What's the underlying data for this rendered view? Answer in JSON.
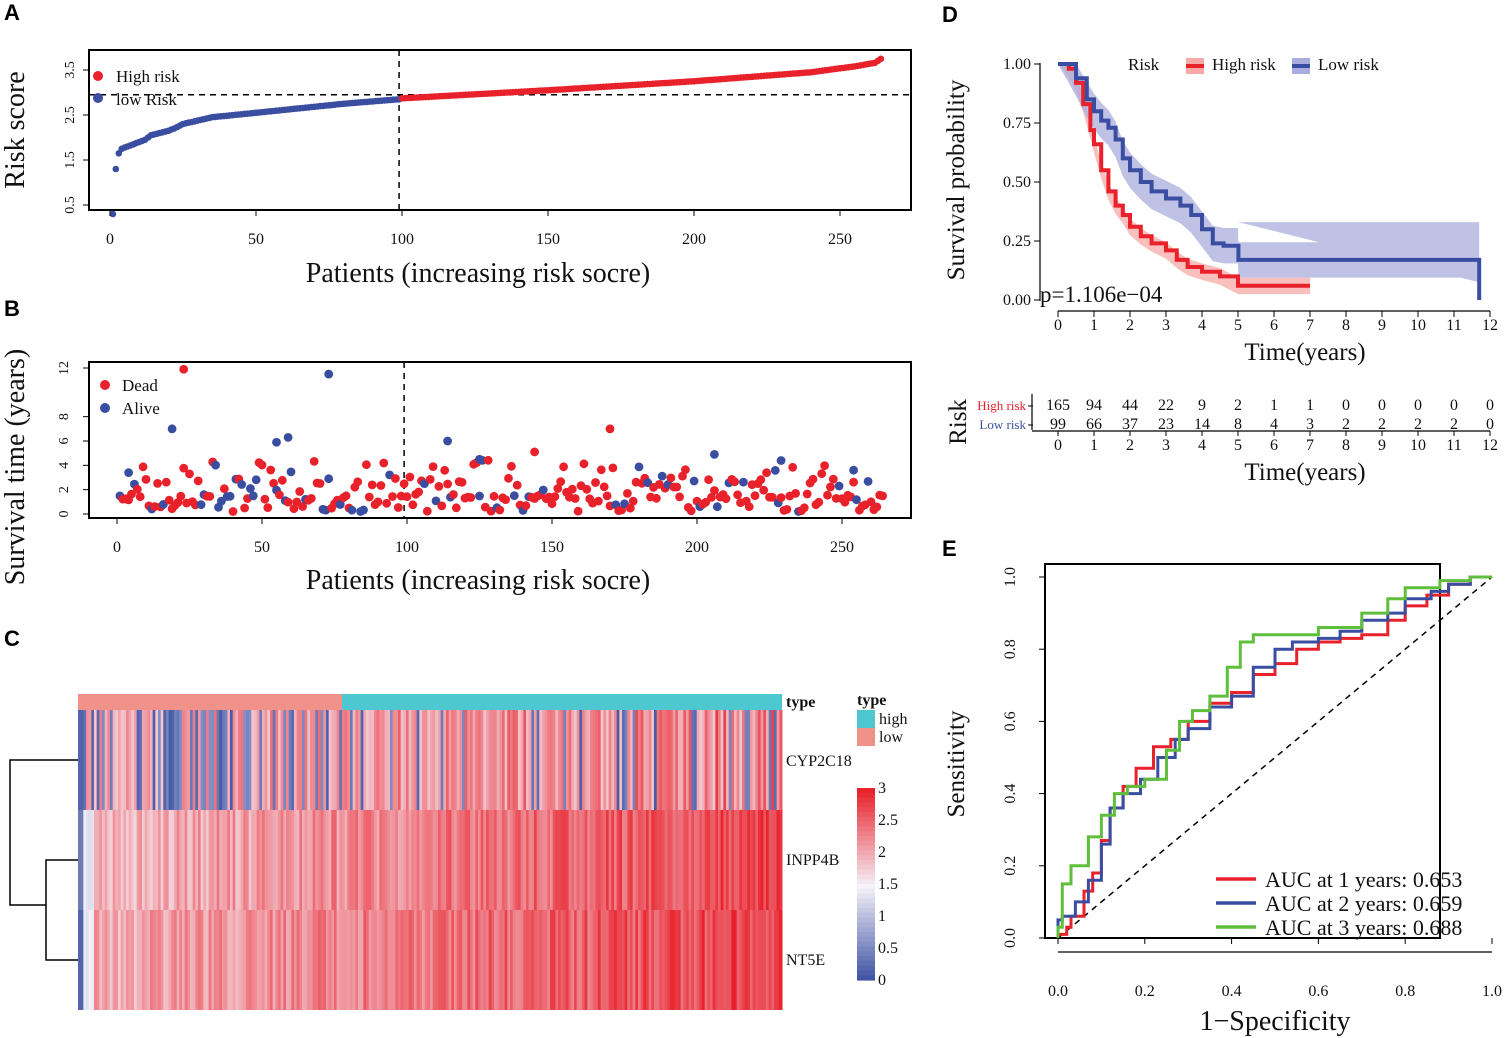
{
  "panel_labels": [
    "A",
    "B",
    "C",
    "D",
    "E"
  ],
  "chart_data": [
    {
      "panel": "A",
      "type": "scatter",
      "ylabel": "Risk score",
      "xlabel": "Patients (increasing risk socre)",
      "xlim": [
        0,
        265
      ],
      "ylim": [
        0.2,
        3.75
      ],
      "xticks": [
        "0",
        "50",
        "100",
        "150",
        "200",
        "250"
      ],
      "yticks": [
        "0.5",
        "1.5",
        "2.5",
        "3.5"
      ],
      "cutoff_patient": 99,
      "cutoff_score": 2.95,
      "n_patients": 264,
      "legend": [
        {
          "label": "High risk",
          "color": "#e8212b"
        },
        {
          "label": "low Risk",
          "color": "#3a4ea1"
        }
      ],
      "curve_anchors": [
        [
          1,
          0.3
        ],
        [
          2,
          1.3
        ],
        [
          3,
          1.65
        ],
        [
          4,
          1.75
        ],
        [
          8,
          1.85
        ],
        [
          12,
          1.95
        ],
        [
          14,
          2.05
        ],
        [
          20,
          2.15
        ],
        [
          22,
          2.2
        ],
        [
          25,
          2.3
        ],
        [
          35,
          2.45
        ],
        [
          50,
          2.55
        ],
        [
          65,
          2.65
        ],
        [
          80,
          2.75
        ],
        [
          99,
          2.85
        ],
        [
          100,
          2.87
        ],
        [
          150,
          3.05
        ],
        [
          200,
          3.25
        ],
        [
          240,
          3.45
        ],
        [
          255,
          3.58
        ],
        [
          262,
          3.66
        ],
        [
          264,
          3.75
        ]
      ]
    },
    {
      "panel": "B",
      "type": "scatter",
      "ylabel": "Survival time (years)",
      "xlabel": "Patients (increasing risk socre)",
      "xlim": [
        0,
        265
      ],
      "ylim": [
        0,
        12
      ],
      "xticks": [
        "0",
        "50",
        "100",
        "150",
        "200",
        "250"
      ],
      "yticks": [
        "0",
        "2",
        "4",
        "6",
        "8",
        "12"
      ],
      "cutoff_patient": 99,
      "legend": [
        {
          "label": "Dead",
          "color": "#e8212b"
        },
        {
          "label": "Alive",
          "color": "#3a4ea1"
        }
      ],
      "highlight_points": [
        {
          "x": 23,
          "y": 11.9,
          "status": "Dead"
        },
        {
          "x": 73,
          "y": 11.5,
          "status": "Alive"
        },
        {
          "x": 19,
          "y": 7.0,
          "status": "Alive"
        },
        {
          "x": 170,
          "y": 7.0,
          "status": "Dead"
        },
        {
          "x": 59,
          "y": 6.3,
          "status": "Alive"
        },
        {
          "x": 114,
          "y": 6.0,
          "status": "Alive"
        },
        {
          "x": 55,
          "y": 5.9,
          "status": "Alive"
        },
        {
          "x": 144,
          "y": 5.1,
          "status": "Dead"
        },
        {
          "x": 206,
          "y": 4.9,
          "status": "Alive"
        },
        {
          "x": 229,
          "y": 4.4,
          "status": "Alive"
        },
        {
          "x": 254,
          "y": 3.6,
          "status": "Alive"
        },
        {
          "x": 4,
          "y": 3.4,
          "status": "Alive"
        },
        {
          "x": 125,
          "y": 4.5,
          "status": "Alive"
        }
      ],
      "seed": 7
    },
    {
      "panel": "C",
      "type": "heatmap",
      "rows": [
        "CYP2C18",
        "INPP4B",
        "NT5E"
      ],
      "annotation_title": "type",
      "annotation_groups": [
        {
          "label": "high",
          "color": "#4ec8d0"
        },
        {
          "label": "low",
          "color": "#f1928a"
        }
      ],
      "low_count": 99,
      "high_count": 165,
      "scale_ticks": [
        "3",
        "2.5",
        "2",
        "1.5",
        "1",
        "0.5",
        "0"
      ],
      "scale_range": [
        0,
        3
      ],
      "colors": {
        "low": "#3a4ea1",
        "mid": "#f5f2f9",
        "high": "#e8212b"
      }
    },
    {
      "panel": "D",
      "type": "line",
      "ylabel": "Survival probability",
      "xlabel": "Time(years)",
      "xlim": [
        0,
        12
      ],
      "ylim": [
        0,
        1
      ],
      "xticks": [
        "0",
        "1",
        "2",
        "3",
        "4",
        "5",
        "6",
        "7",
        "8",
        "9",
        "10",
        "11",
        "12"
      ],
      "yticks": [
        "0.00",
        "0.25",
        "0.50",
        "0.75",
        "1.00"
      ],
      "legend_title": "Risk",
      "pvalue": "p=1.106e−04",
      "series": [
        {
          "name": "High risk",
          "color": "#e8212b",
          "band": "#f6a9a7",
          "points": [
            [
              0,
              1.0
            ],
            [
              0.3,
              0.98
            ],
            [
              0.5,
              0.92
            ],
            [
              0.7,
              0.83
            ],
            [
              0.9,
              0.72
            ],
            [
              1.0,
              0.66
            ],
            [
              1.2,
              0.55
            ],
            [
              1.4,
              0.46
            ],
            [
              1.6,
              0.4
            ],
            [
              1.8,
              0.36
            ],
            [
              2.0,
              0.31
            ],
            [
              2.3,
              0.27
            ],
            [
              2.6,
              0.24
            ],
            [
              3.0,
              0.21
            ],
            [
              3.3,
              0.17
            ],
            [
              3.6,
              0.14
            ],
            [
              4.0,
              0.12
            ],
            [
              4.5,
              0.1
            ],
            [
              5.0,
              0.06
            ],
            [
              7.0,
              0.06
            ]
          ],
          "band_halfwidth": 0.035
        },
        {
          "name": "Low risk",
          "color": "#3a4ea1",
          "band": "#a9acdc",
          "points": [
            [
              0,
              1.0
            ],
            [
              0.5,
              0.94
            ],
            [
              0.8,
              0.85
            ],
            [
              1.0,
              0.8
            ],
            [
              1.2,
              0.76
            ],
            [
              1.4,
              0.73
            ],
            [
              1.6,
              0.68
            ],
            [
              1.8,
              0.6
            ],
            [
              2.0,
              0.55
            ],
            [
              2.3,
              0.5
            ],
            [
              2.6,
              0.46
            ],
            [
              3.0,
              0.43
            ],
            [
              3.4,
              0.4
            ],
            [
              3.7,
              0.36
            ],
            [
              4.0,
              0.3
            ],
            [
              4.3,
              0.24
            ],
            [
              4.6,
              0.23
            ],
            [
              5.0,
              0.23
            ],
            [
              5.01,
              0.17
            ],
            [
              11.7,
              0.17
            ],
            [
              11.7,
              0.0
            ]
          ],
          "band_halfwidth": 0.075
        }
      ],
      "risk_table": {
        "title": "Risk",
        "xlabel": "Time(years)",
        "times": [
          "0",
          "1",
          "2",
          "3",
          "4",
          "5",
          "6",
          "7",
          "8",
          "9",
          "10",
          "11",
          "12"
        ],
        "rows": [
          {
            "label": "High  risk",
            "color": "#e8212b",
            "values": [
              "165",
              "94",
              "44",
              "22",
              "9",
              "2",
              "1",
              "1",
              "0",
              "0",
              "0",
              "0",
              "0"
            ]
          },
          {
            "label": "Low   risk",
            "color": "#3a4ea1",
            "values": [
              "99",
              "66",
              "37",
              "23",
              "14",
              "8",
              "4",
              "3",
              "2",
              "2",
              "2",
              "2",
              "0"
            ]
          }
        ]
      }
    },
    {
      "panel": "E",
      "type": "line",
      "ylabel": "Sensitivity",
      "xlabel": "1−Specificity",
      "xlim": [
        0,
        1
      ],
      "ylim": [
        0,
        1
      ],
      "xticks": [
        "0.0",
        "0.2",
        "0.4",
        "0.6",
        "0.8",
        "1.0"
      ],
      "yticks": [
        "0.0",
        "0.2",
        "0.4",
        "0.6",
        "0.8",
        "1.0"
      ],
      "series": [
        {
          "name": "AUC at 1 years: 0.653",
          "color": "#e8212b",
          "points": [
            [
              0,
              0
            ],
            [
              0.02,
              0.01
            ],
            [
              0.03,
              0.03
            ],
            [
              0.06,
              0.06
            ],
            [
              0.08,
              0.13
            ],
            [
              0.1,
              0.18
            ],
            [
              0.12,
              0.27
            ],
            [
              0.15,
              0.36
            ],
            [
              0.18,
              0.42
            ],
            [
              0.22,
              0.47
            ],
            [
              0.26,
              0.53
            ],
            [
              0.3,
              0.55
            ],
            [
              0.35,
              0.6
            ],
            [
              0.4,
              0.65
            ],
            [
              0.45,
              0.68
            ],
            [
              0.5,
              0.73
            ],
            [
              0.55,
              0.76
            ],
            [
              0.6,
              0.8
            ],
            [
              0.65,
              0.82
            ],
            [
              0.7,
              0.83
            ],
            [
              0.76,
              0.84
            ],
            [
              0.8,
              0.88
            ],
            [
              0.85,
              0.92
            ],
            [
              0.9,
              0.95
            ],
            [
              0.95,
              0.98
            ],
            [
              1,
              1
            ]
          ]
        },
        {
          "name": "AUC at 2 years: 0.659",
          "color": "#3a4ea1",
          "points": [
            [
              0,
              0
            ],
            [
              0.01,
              0.05
            ],
            [
              0.04,
              0.06
            ],
            [
              0.07,
              0.1
            ],
            [
              0.1,
              0.16
            ],
            [
              0.12,
              0.26
            ],
            [
              0.15,
              0.36
            ],
            [
              0.19,
              0.4
            ],
            [
              0.23,
              0.44
            ],
            [
              0.27,
              0.5
            ],
            [
              0.3,
              0.55
            ],
            [
              0.35,
              0.58
            ],
            [
              0.4,
              0.64
            ],
            [
              0.45,
              0.67
            ],
            [
              0.5,
              0.75
            ],
            [
              0.54,
              0.8
            ],
            [
              0.6,
              0.82
            ],
            [
              0.65,
              0.83
            ],
            [
              0.7,
              0.85
            ],
            [
              0.76,
              0.88
            ],
            [
              0.8,
              0.9
            ],
            [
              0.86,
              0.94
            ],
            [
              0.9,
              0.96
            ],
            [
              0.95,
              0.98
            ],
            [
              1,
              1
            ]
          ]
        },
        {
          "name": "AUC at 3 years: 0.688",
          "color": "#5fbf3d",
          "points": [
            [
              0,
              0
            ],
            [
              0.01,
              0.03
            ],
            [
              0.03,
              0.15
            ],
            [
              0.07,
              0.2
            ],
            [
              0.1,
              0.28
            ],
            [
              0.13,
              0.34
            ],
            [
              0.16,
              0.4
            ],
            [
              0.2,
              0.42
            ],
            [
              0.25,
              0.44
            ],
            [
              0.28,
              0.52
            ],
            [
              0.31,
              0.6
            ],
            [
              0.35,
              0.63
            ],
            [
              0.39,
              0.67
            ],
            [
              0.42,
              0.75
            ],
            [
              0.45,
              0.82
            ],
            [
              0.5,
              0.84
            ],
            [
              0.6,
              0.84
            ],
            [
              0.7,
              0.86
            ],
            [
              0.76,
              0.9
            ],
            [
              0.8,
              0.94
            ],
            [
              0.88,
              0.97
            ],
            [
              0.95,
              0.99
            ],
            [
              1,
              1
            ]
          ]
        }
      ]
    }
  ]
}
